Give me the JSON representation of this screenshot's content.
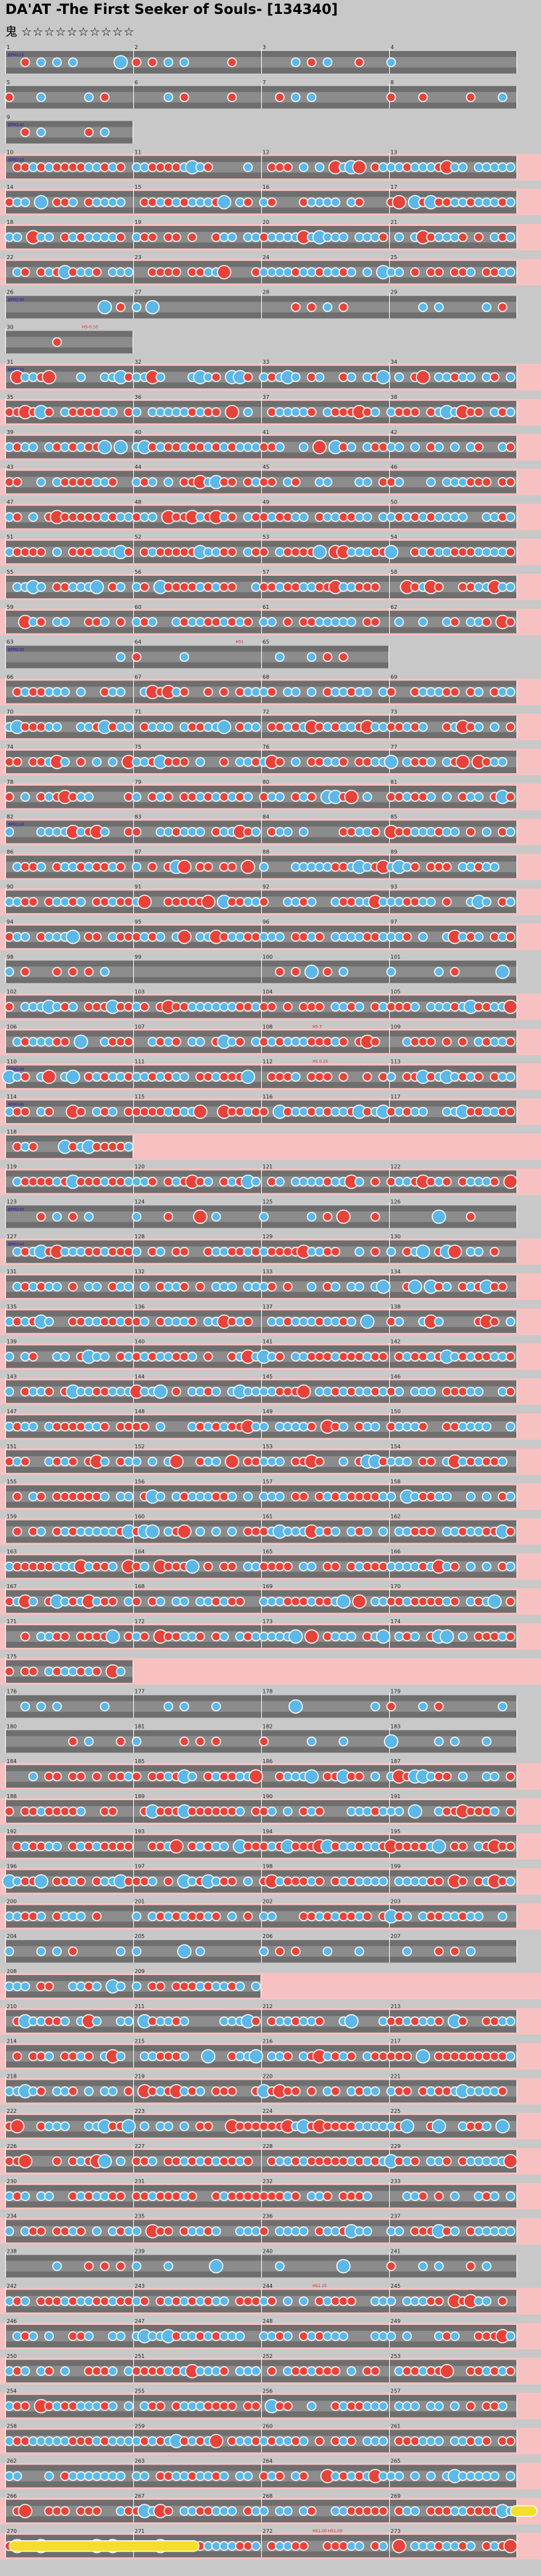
{
  "song": {
    "title": "DA'AT -The First Seeker of Souls- [134340]",
    "difficulty_label": "鬼",
    "difficulty_stars": "☆☆☆☆☆☆☆☆☆☆"
  },
  "palette": {
    "page_bg": "#c8c8c8",
    "lane_dark": "#6e6e6e",
    "lane_light": "#8c8c8c",
    "gogo_bg": "#f7c1c1",
    "don": "#e8433a",
    "ka": "#5bb8e8",
    "drumroll": "#f5dd2b",
    "bpm_text": "#1a1ad0",
    "scroll_text": "#d02a2a"
  },
  "chart_data": {
    "type": "taiko_chart",
    "measures_per_row": 4,
    "row_spans": [
      4,
      4,
      1,
      4,
      4,
      4,
      4,
      4,
      1,
      4,
      4,
      4,
      4,
      4,
      4,
      4,
      4,
      3,
      4,
      4,
      4,
      4,
      4,
      4,
      4,
      4,
      4,
      4,
      4,
      4,
      4,
      1,
      4,
      4,
      4,
      4,
      4,
      4,
      4,
      4,
      4,
      4,
      4,
      4,
      4,
      4,
      1,
      4,
      4,
      4,
      4,
      4,
      4,
      4,
      4,
      2,
      4,
      4,
      4,
      4,
      4,
      4,
      4,
      4,
      4,
      4,
      4,
      4,
      4,
      4,
      4,
      4
    ],
    "gogo_rows": [
      3,
      4,
      5,
      6,
      9,
      10,
      11,
      12,
      13,
      14,
      15,
      16,
      18,
      19,
      20,
      21,
      22,
      23,
      24,
      25,
      27,
      28,
      29,
      30,
      31,
      32,
      34,
      35,
      36,
      37,
      38,
      39,
      40,
      41,
      42,
      43,
      44,
      45,
      46,
      49,
      50,
      51,
      52,
      53,
      55,
      56,
      57,
      58,
      59,
      60,
      61,
      62,
      64,
      65,
      66,
      67,
      68,
      69,
      70,
      71,
      72
    ],
    "bpm_markers": [
      {
        "row": 0,
        "text": "BPM115"
      },
      {
        "row": 2,
        "text": "BPM240"
      },
      {
        "row": 3,
        "text": "BPM240"
      },
      {
        "row": 7,
        "text": "BPM240"
      },
      {
        "row": 9,
        "text": "BPM240"
      },
      {
        "row": 17,
        "text": "BPM240"
      },
      {
        "row": 22,
        "text": "BPM240"
      },
      {
        "row": 29,
        "text": "BPM240"
      },
      {
        "row": 30,
        "text": "BPM240"
      },
      {
        "row": 33,
        "text": "BPM240"
      },
      {
        "row": 34,
        "text": "BPM240"
      }
    ],
    "scroll_markers": [
      {
        "row": 8,
        "text": "HS-0.10"
      },
      {
        "row": 17,
        "text": "HS1"
      },
      {
        "row": 28,
        "text": "HS 3"
      },
      {
        "row": 29,
        "text": "HS 0.25"
      },
      {
        "row": 64,
        "text": "HS1.25"
      },
      {
        "row": 71,
        "text": "HS1.00 HS1.00"
      }
    ]
  }
}
